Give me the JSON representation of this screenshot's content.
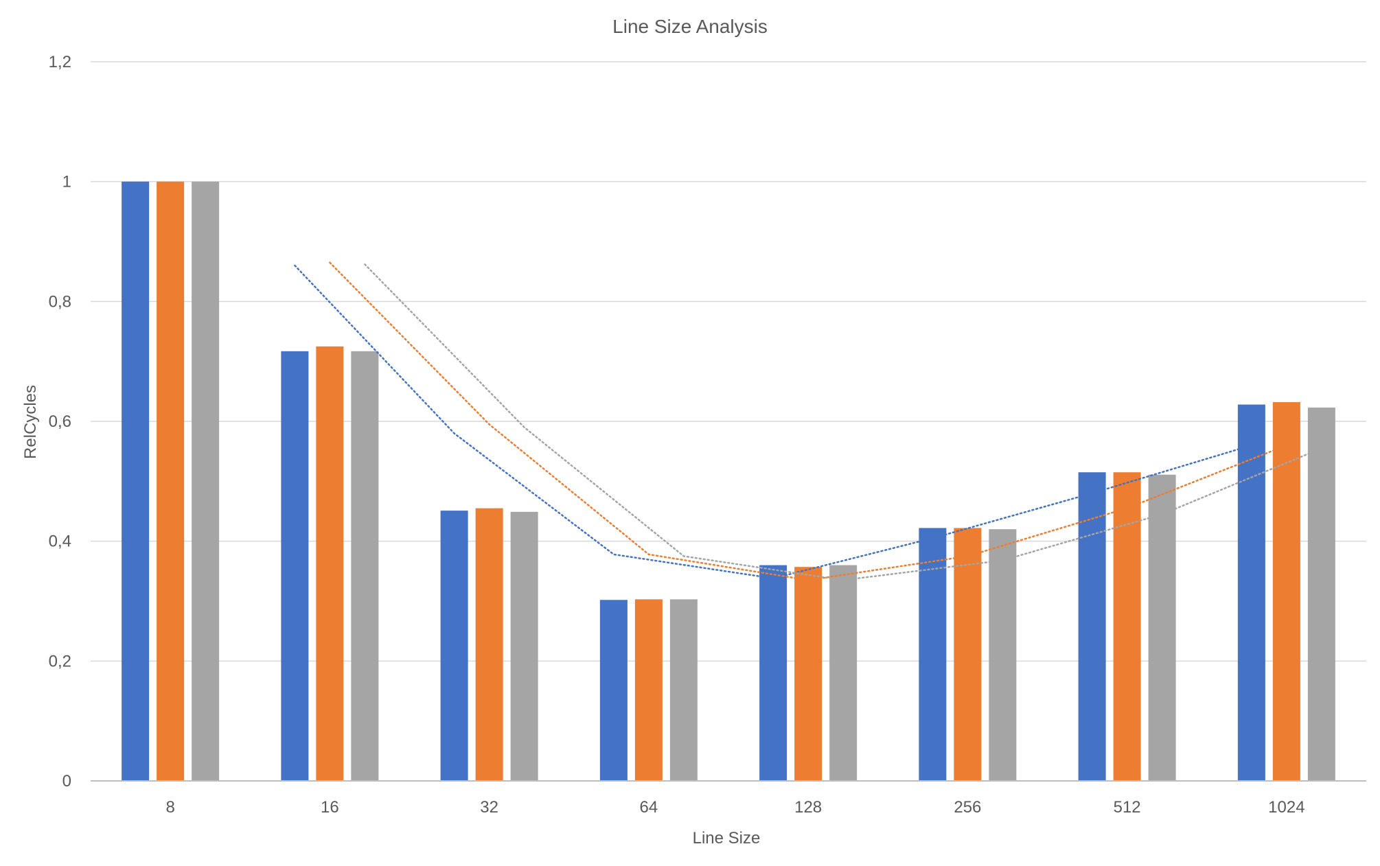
{
  "chart_data": {
    "type": "bar",
    "title": "Line Size Analysis",
    "xlabel": "Line Size",
    "ylabel": "RelCycles",
    "categories": [
      "8",
      "16",
      "32",
      "64",
      "128",
      "256",
      "512",
      "1024"
    ],
    "ylim": [
      0,
      1.2
    ],
    "yticks": [
      0,
      0.2,
      0.4,
      0.6,
      0.8,
      1,
      1.2
    ],
    "ytick_labels": [
      "0",
      "0,2",
      "0,4",
      "0,6",
      "0,8",
      "1",
      "1,2"
    ],
    "grid": true,
    "legend": "none",
    "series": [
      {
        "values": [
          1.0,
          0.717,
          0.451,
          0.302,
          0.36,
          0.422,
          0.515,
          0.628
        ],
        "color": "#4472C4",
        "trendline": {
          "style": "dotted",
          "from_category": "16",
          "to_category": "1024",
          "values": [
            0.86,
            0.58,
            0.378,
            0.338,
            0.405,
            0.48,
            0.56
          ]
        }
      },
      {
        "values": [
          1.0,
          0.725,
          0.455,
          0.303,
          0.357,
          0.422,
          0.515,
          0.632
        ],
        "color": "#ED7D31",
        "trendline": {
          "style": "dotted",
          "from_category": "16",
          "to_category": "1024",
          "values": [
            0.865,
            0.595,
            0.378,
            0.335,
            0.375,
            0.455,
            0.56
          ]
        }
      },
      {
        "values": [
          1.0,
          0.717,
          0.449,
          0.303,
          0.36,
          0.42,
          0.511,
          0.623
        ],
        "color": "#A5A5A5",
        "trendline": {
          "style": "dotted",
          "from_category": "16",
          "to_category": "1024",
          "values": [
            0.862,
            0.59,
            0.375,
            0.335,
            0.368,
            0.445,
            0.555
          ]
        }
      }
    ]
  },
  "colors": {
    "axis_text": "#595959",
    "gridline": "#D9D9D9",
    "axis_line": "#BFBFBF"
  }
}
